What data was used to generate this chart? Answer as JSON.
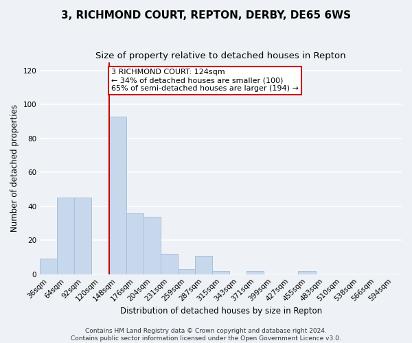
{
  "title": "3, RICHMOND COURT, REPTON, DERBY, DE65 6WS",
  "subtitle": "Size of property relative to detached houses in Repton",
  "xlabel": "Distribution of detached houses by size in Repton",
  "ylabel": "Number of detached properties",
  "bar_color": "#c8d8ec",
  "bar_edgecolor": "#a8c0d8",
  "categories": [
    "36sqm",
    "64sqm",
    "92sqm",
    "120sqm",
    "148sqm",
    "176sqm",
    "204sqm",
    "231sqm",
    "259sqm",
    "287sqm",
    "315sqm",
    "343sqm",
    "371sqm",
    "399sqm",
    "427sqm",
    "455sqm",
    "483sqm",
    "510sqm",
    "538sqm",
    "566sqm",
    "594sqm"
  ],
  "values": [
    9,
    45,
    45,
    0,
    93,
    36,
    34,
    12,
    3,
    11,
    2,
    0,
    2,
    0,
    0,
    2,
    0,
    0,
    0,
    0,
    0
  ],
  "ylim": [
    0,
    125
  ],
  "yticks": [
    0,
    20,
    40,
    60,
    80,
    100,
    120
  ],
  "vline_color": "#cc0000",
  "annotation_text": "3 RICHMOND COURT: 124sqm\n← 34% of detached houses are smaller (100)\n65% of semi-detached houses are larger (194) →",
  "annotation_box_edgecolor": "#cc0000",
  "annotation_box_facecolor": "#ffffff",
  "footer_line1": "Contains HM Land Registry data © Crown copyright and database right 2024.",
  "footer_line2": "Contains public sector information licensed under the Open Government Licence v3.0.",
  "background_color": "#eef2f7",
  "grid_color": "#ffffff",
  "title_fontsize": 11,
  "subtitle_fontsize": 9.5,
  "axis_label_fontsize": 8.5,
  "tick_fontsize": 7.5,
  "annotation_fontsize": 8,
  "footer_fontsize": 6.5
}
